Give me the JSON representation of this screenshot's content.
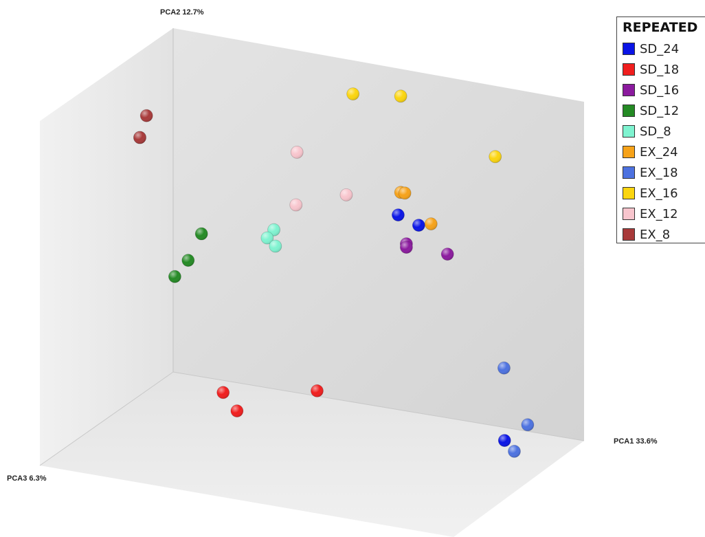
{
  "chart_data": {
    "type": "scatter",
    "projection": "3d",
    "title": "",
    "axes": {
      "x": {
        "label": "PCA1 33.6%"
      },
      "y": {
        "label": "PCA2 12.7%"
      },
      "z": {
        "label": "PCA3 6.3%"
      }
    },
    "legend": {
      "title": "REPEATED",
      "position": "top-right"
    },
    "series": [
      {
        "name": "SD_24",
        "color": "#0a14e6",
        "points": [
          [
            0.58,
            0.6,
            0.1
          ],
          [
            0.63,
            0.58,
            0.1
          ],
          [
            0.92,
            0.08,
            0.35
          ]
        ]
      },
      {
        "name": "SD_18",
        "color": "#f01e1e",
        "points": [
          [
            0.3,
            0.15,
            0.55
          ],
          [
            0.35,
            0.12,
            0.6
          ],
          [
            0.48,
            0.15,
            0.4
          ]
        ]
      },
      {
        "name": "SD_16",
        "color": "#8b1a9e",
        "points": [
          [
            0.6,
            0.52,
            0.1
          ],
          [
            0.6,
            0.51,
            0.1
          ],
          [
            0.7,
            0.51,
            0.1
          ]
        ]
      },
      {
        "name": "SD_12",
        "color": "#248a24",
        "points": [
          [
            0.15,
            0.5,
            0.25
          ],
          [
            0.15,
            0.45,
            0.35
          ],
          [
            0.15,
            0.43,
            0.45
          ]
        ]
      },
      {
        "name": "SD_8",
        "color": "#7ff3d0",
        "points": [
          [
            0.31,
            0.53,
            0.2
          ],
          [
            0.31,
            0.52,
            0.25
          ],
          [
            0.33,
            0.5,
            0.25
          ]
        ]
      },
      {
        "name": "EX_24",
        "color": "#f6a219",
        "points": [
          [
            0.57,
            0.65,
            0.05
          ],
          [
            0.58,
            0.65,
            0.05
          ],
          [
            0.66,
            0.59,
            0.1
          ]
        ]
      },
      {
        "name": "EX_18",
        "color": "#4d72e0",
        "points": [
          [
            0.87,
            0.24,
            0.2
          ],
          [
            0.96,
            0.12,
            0.3
          ],
          [
            0.96,
            0.07,
            0.4
          ]
        ]
      },
      {
        "name": "EX_16",
        "color": "#fbd50f",
        "points": [
          [
            0.47,
            0.93,
            0.1
          ],
          [
            0.57,
            0.93,
            0.05
          ],
          [
            0.8,
            0.8,
            0.05
          ]
        ]
      },
      {
        "name": "EX_12",
        "color": "#f8c5cd",
        "points": [
          [
            0.35,
            0.75,
            0.15
          ],
          [
            0.47,
            0.65,
            0.15
          ],
          [
            0.38,
            0.63,
            0.25
          ]
        ]
      },
      {
        "name": "EX_8",
        "color": "#a83a3a",
        "points": [
          [
            0.0,
            0.8,
            0.2
          ],
          [
            0.0,
            0.75,
            0.25
          ],
          [
            0.0,
            0.75,
            0.25
          ]
        ]
      }
    ],
    "grid": false
  }
}
